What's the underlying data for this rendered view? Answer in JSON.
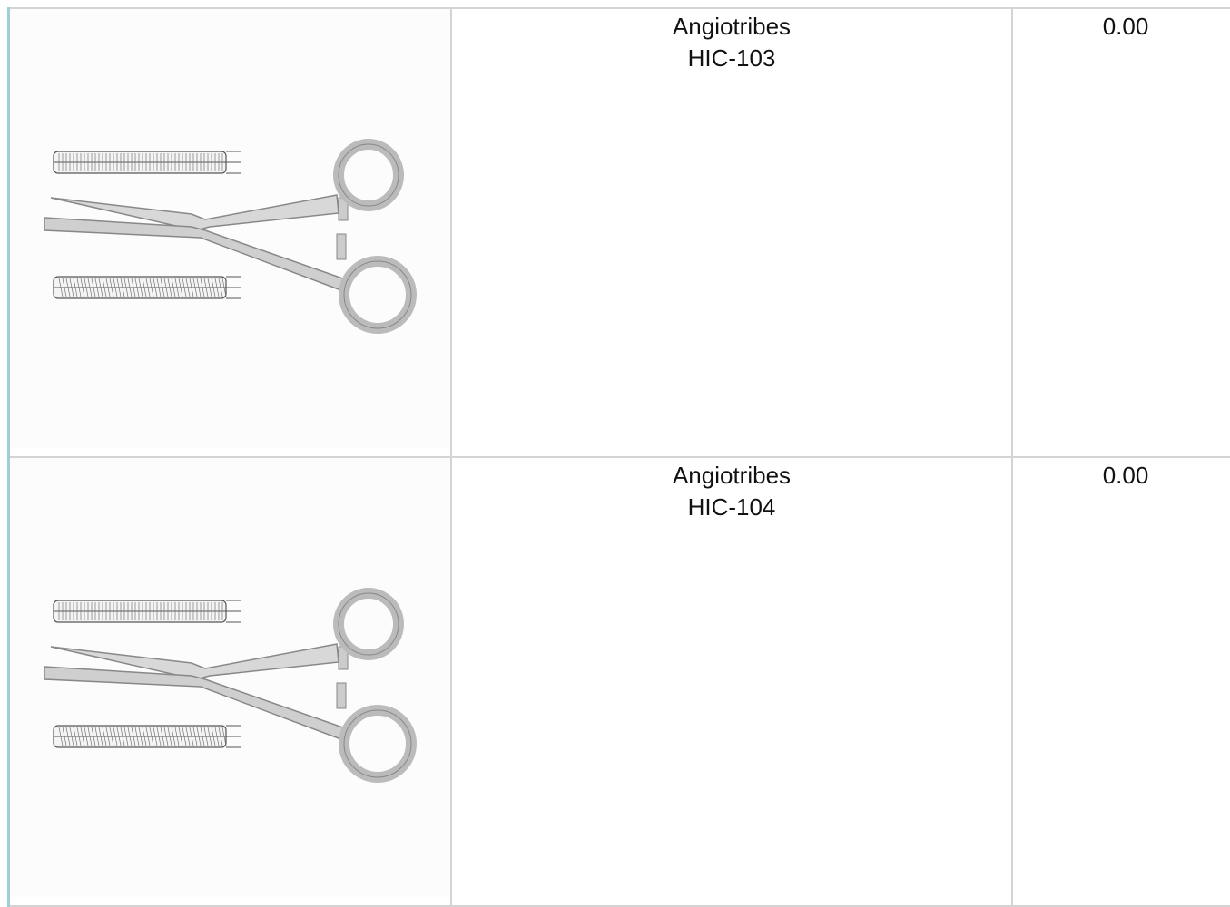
{
  "table": {
    "rows": [
      {
        "name": "Angiotribes",
        "code": "HIC-103",
        "price": "0.00"
      },
      {
        "name": "Angiotribes",
        "code": "HIC-104",
        "price": "0.00"
      }
    ]
  }
}
